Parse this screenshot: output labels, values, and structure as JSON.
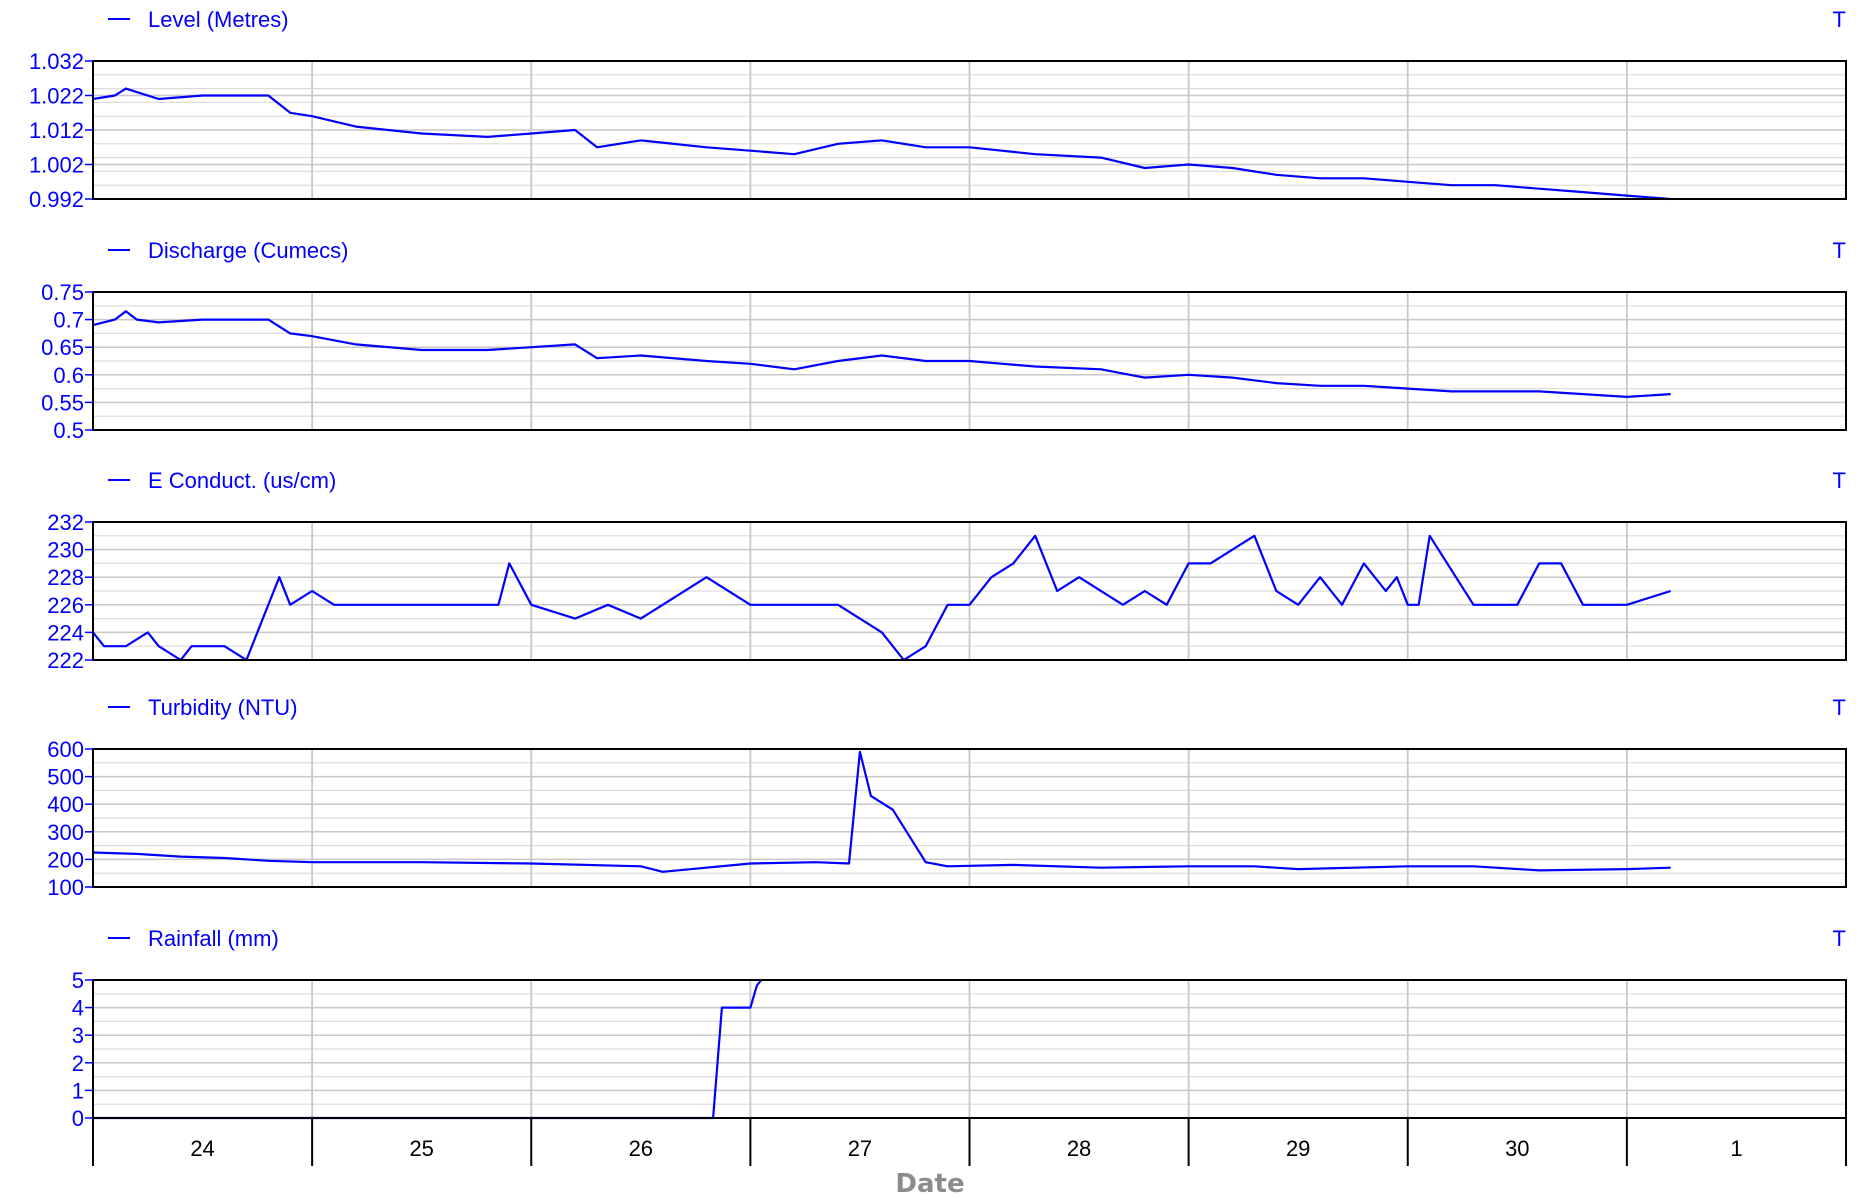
{
  "chart_data": {
    "type": "line",
    "xlabel": "Date",
    "x_categories": [
      "24",
      "25",
      "26",
      "27",
      "28",
      "29",
      "30",
      "1"
    ],
    "grid": true,
    "colors": {
      "series": "#0000ff",
      "major_grid": "#c8c8c8",
      "minor_grid": "#dcdcdc",
      "frame": "#000000",
      "axis_title": "#8c8c8c"
    },
    "panels": [
      {
        "name": "Level (Metres)",
        "marker": "T",
        "ylim": [
          0.992,
          1.032
        ],
        "yticks": [
          "1.032",
          "1.022",
          "1.012",
          "1.002",
          "0.992"
        ],
        "x": [
          0,
          0.1,
          0.15,
          0.2,
          0.3,
          0.5,
          0.8,
          0.9,
          1.0,
          1.2,
          1.5,
          1.8,
          2.0,
          2.2,
          2.3,
          2.5,
          2.8,
          3.0,
          3.2,
          3.4,
          3.6,
          3.8,
          4.0,
          4.3,
          4.6,
          4.8,
          5.0,
          5.2,
          5.4,
          5.6,
          5.8,
          6.0,
          6.2,
          6.4,
          6.6,
          6.8,
          7.0,
          7.2
        ],
        "y": [
          1.021,
          1.022,
          1.024,
          1.023,
          1.021,
          1.022,
          1.022,
          1.017,
          1.016,
          1.013,
          1.011,
          1.01,
          1.011,
          1.012,
          1.007,
          1.009,
          1.007,
          1.006,
          1.005,
          1.008,
          1.009,
          1.007,
          1.007,
          1.005,
          1.004,
          1.001,
          1.002,
          1.001,
          0.999,
          0.998,
          0.998,
          0.997,
          0.996,
          0.996,
          0.995,
          0.994,
          0.993,
          0.992
        ]
      },
      {
        "name": "Discharge (Cumecs)",
        "marker": "T",
        "ylim": [
          0.5,
          0.75
        ],
        "yticks": [
          "0.75",
          "0.7",
          "0.65",
          "0.6",
          "0.55",
          "0.5"
        ],
        "x": [
          0,
          0.1,
          0.15,
          0.2,
          0.3,
          0.5,
          0.8,
          0.9,
          1.0,
          1.2,
          1.5,
          1.8,
          2.0,
          2.2,
          2.3,
          2.5,
          2.8,
          3.0,
          3.2,
          3.4,
          3.6,
          3.8,
          4.0,
          4.3,
          4.6,
          4.8,
          5.0,
          5.2,
          5.4,
          5.6,
          5.8,
          6.0,
          6.2,
          6.4,
          6.6,
          6.8,
          7.0,
          7.2
        ],
        "y": [
          0.69,
          0.7,
          0.715,
          0.7,
          0.695,
          0.7,
          0.7,
          0.675,
          0.67,
          0.655,
          0.645,
          0.645,
          0.65,
          0.655,
          0.63,
          0.635,
          0.625,
          0.62,
          0.61,
          0.625,
          0.635,
          0.625,
          0.625,
          0.615,
          0.61,
          0.595,
          0.6,
          0.595,
          0.585,
          0.58,
          0.58,
          0.575,
          0.57,
          0.57,
          0.57,
          0.565,
          0.56,
          0.565
        ]
      },
      {
        "name": "E Conduct. (us/cm)",
        "marker": "T",
        "ylim": [
          222,
          232
        ],
        "yticks": [
          "232",
          "230",
          "228",
          "226",
          "224",
          "222"
        ],
        "x": [
          0,
          0.05,
          0.15,
          0.25,
          0.3,
          0.4,
          0.45,
          0.6,
          0.7,
          0.8,
          0.85,
          0.9,
          1.0,
          1.1,
          1.2,
          1.5,
          1.7,
          1.85,
          1.9,
          2.0,
          2.2,
          2.35,
          2.5,
          2.6,
          2.8,
          3.0,
          3.2,
          3.4,
          3.5,
          3.6,
          3.65,
          3.7,
          3.8,
          3.9,
          4.0,
          4.1,
          4.2,
          4.3,
          4.4,
          4.5,
          4.7,
          4.8,
          4.9,
          5.0,
          5.1,
          5.3,
          5.4,
          5.5,
          5.6,
          5.7,
          5.8,
          5.9,
          5.95,
          6.0,
          6.05,
          6.1,
          6.3,
          6.5,
          6.6,
          6.7,
          6.8,
          6.9,
          7.0,
          7.2
        ],
        "y": [
          224,
          223,
          223,
          224,
          223,
          222,
          223,
          223,
          222,
          226,
          228,
          226,
          227,
          226,
          226,
          226,
          226,
          226,
          229,
          226,
          225,
          226,
          225,
          226,
          228,
          226,
          226,
          226,
          225,
          224,
          223,
          222,
          223,
          226,
          226,
          228,
          229,
          231,
          227,
          228,
          226,
          227,
          226,
          229,
          229,
          231,
          227,
          226,
          228,
          226,
          229,
          227,
          228,
          226,
          226,
          231,
          226,
          226,
          229,
          229,
          226,
          226,
          226,
          227
        ]
      },
      {
        "name": "Turbidity (NTU)",
        "marker": "T",
        "ylim": [
          100,
          600
        ],
        "yticks": [
          "600",
          "500",
          "400",
          "300",
          "200",
          "100"
        ],
        "x": [
          0,
          0.2,
          0.4,
          0.6,
          0.8,
          1.0,
          1.5,
          2.0,
          2.5,
          2.6,
          3.0,
          3.3,
          3.45,
          3.5,
          3.55,
          3.65,
          3.8,
          3.9,
          4.2,
          4.6,
          5.0,
          5.3,
          5.5,
          6.0,
          6.3,
          6.6,
          7.0,
          7.2
        ],
        "y": [
          225,
          220,
          210,
          205,
          195,
          190,
          190,
          185,
          175,
          155,
          185,
          190,
          185,
          590,
          430,
          380,
          190,
          175,
          180,
          170,
          175,
          175,
          165,
          175,
          175,
          160,
          165,
          170
        ]
      },
      {
        "name": "Rainfall (mm)",
        "marker": "T",
        "ylim": [
          0,
          5
        ],
        "yticks": [
          "5",
          "4",
          "3",
          "2",
          "1",
          "0"
        ],
        "x": [
          0,
          2.8,
          2.83,
          2.85,
          2.87,
          2.95,
          3.0,
          3.03,
          3.05
        ],
        "y": [
          0,
          0,
          0,
          2,
          4,
          4,
          4,
          4.8,
          5
        ]
      }
    ]
  }
}
